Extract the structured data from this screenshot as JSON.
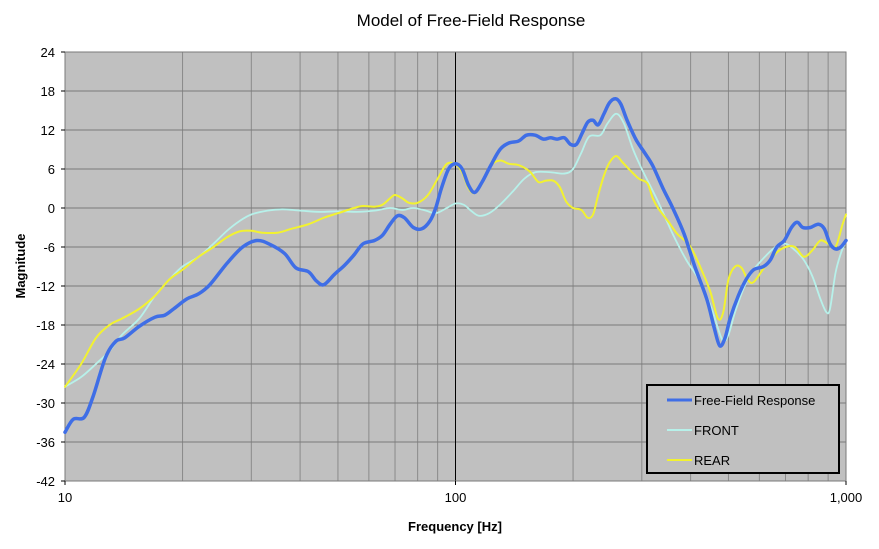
{
  "chart_data": {
    "type": "line",
    "title": "Model of Free-Field Response",
    "xlabel": "Frequency [Hz]",
    "ylabel": "Magnitude",
    "xscale": "log",
    "xlim": [
      10,
      1000
    ],
    "ylim": [
      -42,
      24
    ],
    "yticks": [
      24,
      18,
      12,
      6,
      0,
      -6,
      -12,
      -18,
      -24,
      -30,
      -36,
      -42
    ],
    "ytick_labels": [
      "24",
      "18",
      "12",
      "6",
      "0",
      "-6",
      "-12",
      "-18",
      "-24",
      "-30",
      "-36",
      "-42"
    ],
    "xticks": [
      10,
      100,
      1000
    ],
    "xtick_labels": [
      "10",
      "100",
      "1,000"
    ],
    "grid": true,
    "plot_background": "#c0c0c0",
    "legend_position": "bottom-right",
    "series": [
      {
        "name": "Free-Field Response",
        "color": "#3f6ee6",
        "data": [
          [
            10,
            -34.5
          ],
          [
            10.5,
            -32.5
          ],
          [
            11.2,
            -32.2
          ],
          [
            11.8,
            -29
          ],
          [
            12.7,
            -23
          ],
          [
            13.5,
            -20.5
          ],
          [
            14.2,
            -20
          ],
          [
            15.5,
            -18.2
          ],
          [
            17,
            -16.8
          ],
          [
            18,
            -16.5
          ],
          [
            19,
            -15.5
          ],
          [
            20.5,
            -14
          ],
          [
            22,
            -13.2
          ],
          [
            23.5,
            -11.8
          ],
          [
            26,
            -8.5
          ],
          [
            28.5,
            -6
          ],
          [
            31,
            -5
          ],
          [
            33.5,
            -5.6
          ],
          [
            36.5,
            -7
          ],
          [
            39,
            -9.2
          ],
          [
            42,
            -9.8
          ],
          [
            44,
            -11.2
          ],
          [
            46,
            -11.8
          ],
          [
            49,
            -10.2
          ],
          [
            52,
            -8.8
          ],
          [
            55,
            -7.2
          ],
          [
            58,
            -5.5
          ],
          [
            62,
            -5
          ],
          [
            65,
            -4.2
          ],
          [
            68,
            -2.5
          ],
          [
            71,
            -1.2
          ],
          [
            74,
            -1.5
          ],
          [
            78,
            -3
          ],
          [
            82,
            -3.2
          ],
          [
            86,
            -2
          ],
          [
            89,
            0
          ],
          [
            92,
            3
          ],
          [
            96,
            6
          ],
          [
            100,
            6.8
          ],
          [
            104,
            6
          ],
          [
            108,
            3.5
          ],
          [
            112,
            2.4
          ],
          [
            117,
            4
          ],
          [
            123,
            6.5
          ],
          [
            130,
            9
          ],
          [
            137,
            10
          ],
          [
            145,
            10.3
          ],
          [
            152,
            11.2
          ],
          [
            160,
            11.2
          ],
          [
            168,
            10.6
          ],
          [
            175,
            10.8
          ],
          [
            182,
            10.6
          ],
          [
            190,
            10.8
          ],
          [
            197,
            9.8
          ],
          [
            204,
            9.8
          ],
          [
            211,
            11.5
          ],
          [
            218,
            13.2
          ],
          [
            225,
            13.5
          ],
          [
            232,
            12.8
          ],
          [
            240,
            14.5
          ],
          [
            248,
            16.2
          ],
          [
            257,
            16.8
          ],
          [
            265,
            16
          ],
          [
            275,
            13.5
          ],
          [
            290,
            10.5
          ],
          [
            305,
            8.5
          ],
          [
            320,
            6.5
          ],
          [
            340,
            3
          ],
          [
            360,
            0
          ],
          [
            385,
            -4
          ],
          [
            410,
            -9
          ],
          [
            440,
            -14
          ],
          [
            460,
            -18.5
          ],
          [
            475,
            -21.2
          ],
          [
            490,
            -20
          ],
          [
            505,
            -17
          ],
          [
            530,
            -13.5
          ],
          [
            555,
            -11
          ],
          [
            580,
            -9.5
          ],
          [
            615,
            -9
          ],
          [
            640,
            -8
          ],
          [
            665,
            -6
          ],
          [
            695,
            -5
          ],
          [
            725,
            -3
          ],
          [
            750,
            -2.2
          ],
          [
            775,
            -3
          ],
          [
            810,
            -3
          ],
          [
            850,
            -2.5
          ],
          [
            880,
            -3.2
          ],
          [
            910,
            -5.5
          ],
          [
            940,
            -6.3
          ],
          [
            970,
            -6
          ],
          [
            1000,
            -5
          ]
        ]
      },
      {
        "name": "FRONT",
        "color": "#b7f1ea",
        "data": [
          [
            10,
            -27.5
          ],
          [
            11,
            -26
          ],
          [
            12,
            -24
          ],
          [
            13,
            -22
          ],
          [
            14,
            -19.5
          ],
          [
            15.5,
            -17
          ],
          [
            17,
            -13.5
          ],
          [
            18.5,
            -11
          ],
          [
            20,
            -9
          ],
          [
            22,
            -7.5
          ],
          [
            24,
            -5.5
          ],
          [
            26,
            -3.5
          ],
          [
            28,
            -2
          ],
          [
            30,
            -1
          ],
          [
            33,
            -0.4
          ],
          [
            36,
            -0.2
          ],
          [
            40,
            -0.4
          ],
          [
            45,
            -0.6
          ],
          [
            50,
            -0.5
          ],
          [
            56,
            -0.6
          ],
          [
            62,
            -0.4
          ],
          [
            68,
            0
          ],
          [
            73,
            -0.3
          ],
          [
            78,
            0
          ],
          [
            84,
            -0.4
          ],
          [
            89,
            -0.8
          ],
          [
            95,
            0
          ],
          [
            100,
            0.7
          ],
          [
            105,
            0.5
          ],
          [
            110,
            -0.5
          ],
          [
            115,
            -1.2
          ],
          [
            122,
            -0.8
          ],
          [
            130,
            0.5
          ],
          [
            140,
            2.5
          ],
          [
            150,
            4.5
          ],
          [
            160,
            5.5
          ],
          [
            175,
            5.5
          ],
          [
            190,
            5.3
          ],
          [
            200,
            6
          ],
          [
            210,
            8.5
          ],
          [
            220,
            11
          ],
          [
            235,
            11.2
          ],
          [
            245,
            13
          ],
          [
            258,
            14.5
          ],
          [
            270,
            13
          ],
          [
            285,
            9
          ],
          [
            300,
            6
          ],
          [
            330,
            1
          ],
          [
            360,
            -4
          ],
          [
            390,
            -8
          ],
          [
            420,
            -11
          ],
          [
            450,
            -15
          ],
          [
            470,
            -18.5
          ],
          [
            485,
            -20.5
          ],
          [
            500,
            -19.5
          ],
          [
            520,
            -16
          ],
          [
            550,
            -12
          ],
          [
            580,
            -9.5
          ],
          [
            620,
            -7.5
          ],
          [
            660,
            -6
          ],
          [
            700,
            -5.5
          ],
          [
            740,
            -6.5
          ],
          [
            780,
            -8
          ],
          [
            820,
            -10.5
          ],
          [
            860,
            -14
          ],
          [
            890,
            -16
          ],
          [
            910,
            -15.5
          ],
          [
            940,
            -10
          ],
          [
            970,
            -7
          ],
          [
            1000,
            -5
          ]
        ]
      },
      {
        "name": "REAR",
        "color": "#f2f230",
        "data": [
          [
            10,
            -27.5
          ],
          [
            11,
            -24
          ],
          [
            12,
            -20
          ],
          [
            13,
            -18
          ],
          [
            14,
            -17
          ],
          [
            15.5,
            -15.5
          ],
          [
            17,
            -13.5
          ],
          [
            18.5,
            -11
          ],
          [
            20,
            -9.5
          ],
          [
            22,
            -7.5
          ],
          [
            24,
            -6
          ],
          [
            26,
            -4.5
          ],
          [
            28,
            -3.6
          ],
          [
            30,
            -3.5
          ],
          [
            32,
            -3.8
          ],
          [
            35,
            -3.8
          ],
          [
            38,
            -3.2
          ],
          [
            42,
            -2.5
          ],
          [
            46,
            -1.5
          ],
          [
            50,
            -0.8
          ],
          [
            55,
            0
          ],
          [
            58,
            0.3
          ],
          [
            62,
            0.2
          ],
          [
            65,
            0.5
          ],
          [
            68,
            1.5
          ],
          [
            70,
            2
          ],
          [
            73,
            1.5
          ],
          [
            76,
            0.8
          ],
          [
            80,
            0.8
          ],
          [
            85,
            2
          ],
          [
            90,
            4.5
          ],
          [
            95,
            6.8
          ],
          [
            100,
            6.7
          ],
          [
            104,
            5.5
          ],
          [
            108,
            3
          ],
          [
            112,
            2.3
          ],
          [
            117,
            3.8
          ],
          [
            123,
            6.5
          ],
          [
            130,
            7.3
          ],
          [
            137,
            6.8
          ],
          [
            145,
            6.6
          ],
          [
            155,
            5.6
          ],
          [
            163,
            4
          ],
          [
            170,
            4.2
          ],
          [
            178,
            4.2
          ],
          [
            185,
            3.2
          ],
          [
            192,
            1
          ],
          [
            200,
            0
          ],
          [
            210,
            -0.3
          ],
          [
            218,
            -1.5
          ],
          [
            225,
            -1
          ],
          [
            232,
            2
          ],
          [
            240,
            5
          ],
          [
            248,
            7
          ],
          [
            258,
            8
          ],
          [
            268,
            7
          ],
          [
            280,
            5.8
          ],
          [
            295,
            4.5
          ],
          [
            310,
            3.8
          ],
          [
            320,
            1.5
          ],
          [
            330,
            0
          ],
          [
            350,
            -2
          ],
          [
            370,
            -4
          ],
          [
            400,
            -6
          ],
          [
            430,
            -10
          ],
          [
            450,
            -13
          ],
          [
            470,
            -17
          ],
          [
            485,
            -16
          ],
          [
            500,
            -11
          ],
          [
            520,
            -9
          ],
          [
            540,
            -9.2
          ],
          [
            560,
            -11
          ],
          [
            580,
            -11.4
          ],
          [
            620,
            -9
          ],
          [
            660,
            -7
          ],
          [
            700,
            -6
          ],
          [
            740,
            -6
          ],
          [
            780,
            -7.5
          ],
          [
            820,
            -6.5
          ],
          [
            860,
            -5
          ],
          [
            900,
            -5.5
          ],
          [
            940,
            -6
          ],
          [
            980,
            -2.5
          ],
          [
            1000,
            -1
          ]
        ]
      }
    ]
  }
}
